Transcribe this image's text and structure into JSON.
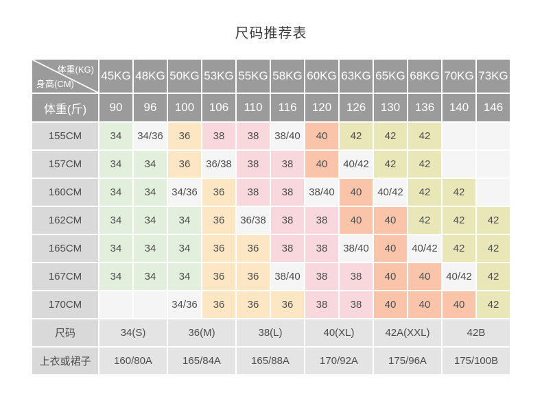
{
  "title": "尺码推荐表",
  "palette": {
    "header-bg": "#9b9b9b",
    "header-text": "#ffffff",
    "label-bg": "#d9d9d9",
    "footer-bg": "#e4e4e4",
    "text": "#4d4d4d",
    "title-color": "#3c3c3c",
    "green": "#e2efdc",
    "white": "#f5f5f5",
    "orange": "#fce6c4",
    "pink": "#f8d8dd",
    "salmon": "#f9c4a9",
    "khaki": "#e9e7b7"
  },
  "table": {
    "corner": {
      "top": "体重(KG)",
      "bottom": "身高(CM)"
    },
    "weight_kg": [
      "45KG",
      "48KG",
      "50KG",
      "53KG",
      "55KG",
      "58KG",
      "60KG",
      "63KG",
      "65KG",
      "68KG",
      "70KG",
      "73KG"
    ],
    "weight_jin_label": "体重(斤)",
    "weight_jin": [
      "90",
      "96",
      "100",
      "106",
      "110",
      "116",
      "120",
      "126",
      "130",
      "136",
      "140",
      "146"
    ],
    "rows": [
      {
        "label": "155CM",
        "cells": [
          [
            "34",
            "g"
          ],
          [
            "34/36",
            "w"
          ],
          [
            "36",
            "o"
          ],
          [
            "38",
            "p"
          ],
          [
            "38",
            "p"
          ],
          [
            "38/40",
            "w"
          ],
          [
            "40",
            "s"
          ],
          [
            "42",
            "k"
          ],
          [
            "42",
            "k"
          ],
          [
            "42",
            "k"
          ],
          [
            "",
            "w"
          ],
          [
            "",
            "w"
          ]
        ]
      },
      {
        "label": "157CM",
        "cells": [
          [
            "34",
            "g"
          ],
          [
            "34",
            "g"
          ],
          [
            "36",
            "o"
          ],
          [
            "36/38",
            "w"
          ],
          [
            "38",
            "p"
          ],
          [
            "38",
            "p"
          ],
          [
            "40",
            "s"
          ],
          [
            "40/42",
            "w"
          ],
          [
            "42",
            "k"
          ],
          [
            "42",
            "k"
          ],
          [
            "",
            "w"
          ],
          [
            "",
            "w"
          ]
        ]
      },
      {
        "label": "160CM",
        "cells": [
          [
            "34",
            "g"
          ],
          [
            "34",
            "g"
          ],
          [
            "34/36",
            "w"
          ],
          [
            "36",
            "o"
          ],
          [
            "38",
            "p"
          ],
          [
            "38",
            "p"
          ],
          [
            "38/40",
            "w"
          ],
          [
            "40",
            "s"
          ],
          [
            "40/42",
            "w"
          ],
          [
            "42",
            "k"
          ],
          [
            "42",
            "k"
          ],
          [
            "",
            "w"
          ]
        ]
      },
      {
        "label": "162CM",
        "cells": [
          [
            "34",
            "g"
          ],
          [
            "34",
            "g"
          ],
          [
            "34",
            "g"
          ],
          [
            "36",
            "o"
          ],
          [
            "36/38",
            "w"
          ],
          [
            "38",
            "p"
          ],
          [
            "38",
            "p"
          ],
          [
            "40",
            "s"
          ],
          [
            "40",
            "s"
          ],
          [
            "42",
            "k"
          ],
          [
            "42",
            "k"
          ],
          [
            "42",
            "k"
          ]
        ]
      },
      {
        "label": "165CM",
        "cells": [
          [
            "34",
            "g"
          ],
          [
            "34",
            "g"
          ],
          [
            "34",
            "g"
          ],
          [
            "36",
            "o"
          ],
          [
            "36",
            "o"
          ],
          [
            "38",
            "p"
          ],
          [
            "38",
            "p"
          ],
          [
            "38/40",
            "w"
          ],
          [
            "40",
            "s"
          ],
          [
            "40/42",
            "w"
          ],
          [
            "42",
            "k"
          ],
          [
            "42",
            "k"
          ]
        ]
      },
      {
        "label": "167CM",
        "cells": [
          [
            "34",
            "g"
          ],
          [
            "34",
            "g"
          ],
          [
            "34",
            "g"
          ],
          [
            "36",
            "o"
          ],
          [
            "36",
            "o"
          ],
          [
            "38/40",
            "w"
          ],
          [
            "38",
            "p"
          ],
          [
            "38",
            "p"
          ],
          [
            "40",
            "s"
          ],
          [
            "40",
            "s"
          ],
          [
            "40/42",
            "w"
          ],
          [
            "42",
            "k"
          ]
        ]
      },
      {
        "label": "170CM",
        "cells": [
          [
            "",
            "w"
          ],
          [
            "",
            "w"
          ],
          [
            "34/36",
            "w"
          ],
          [
            "36",
            "o"
          ],
          [
            "36",
            "o"
          ],
          [
            "36",
            "o"
          ],
          [
            "38",
            "p"
          ],
          [
            "38",
            "p"
          ],
          [
            "40",
            "s"
          ],
          [
            "40",
            "s"
          ],
          [
            "40",
            "s"
          ],
          [
            "42",
            "k"
          ]
        ]
      }
    ],
    "size_row": {
      "label": "尺码",
      "values": [
        "34(S)",
        "36(M)",
        "38(L)",
        "40(XL)",
        "42A(XXL)",
        "42B"
      ]
    },
    "garment_row": {
      "label": "上衣或裙子",
      "values": [
        "160/80A",
        "165/84A",
        "165/88A",
        "170/92A",
        "175/96A",
        "175/100B"
      ]
    }
  }
}
